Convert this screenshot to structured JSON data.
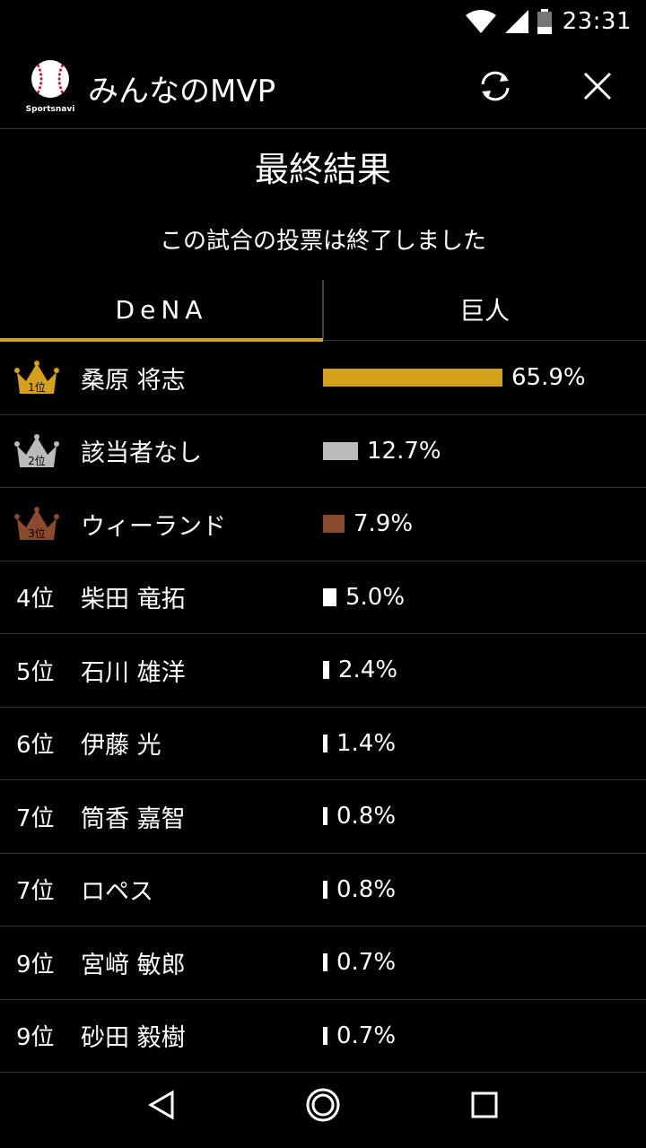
{
  "status": {
    "time": "23:31"
  },
  "app": {
    "title": "みんなのMVP",
    "logo_text": "Sportsnavi"
  },
  "heading": "最終結果",
  "subheading": "この試合の投票は終了しました",
  "tabs": [
    {
      "label": "DeNA",
      "active": true
    },
    {
      "label": "巨人",
      "active": false
    }
  ],
  "colors": {
    "gold": "#d4a21a",
    "silver": "#bbbbbb",
    "bronze": "#8b4a2b",
    "white": "#ffffff"
  },
  "rankings": [
    {
      "rank": "1位",
      "crown": "gold",
      "name": "桑原 将志",
      "percent": 65.9,
      "pct_label": "65.9%"
    },
    {
      "rank": "2位",
      "crown": "silver",
      "name": "該当者なし",
      "percent": 12.7,
      "pct_label": "12.7%"
    },
    {
      "rank": "3位",
      "crown": "bronze",
      "name": "ウィーランド",
      "percent": 7.9,
      "pct_label": "7.9%"
    },
    {
      "rank": "4位",
      "crown": null,
      "name": "柴田 竜拓",
      "percent": 5.0,
      "pct_label": "5.0%"
    },
    {
      "rank": "5位",
      "crown": null,
      "name": "石川 雄洋",
      "percent": 2.4,
      "pct_label": "2.4%"
    },
    {
      "rank": "6位",
      "crown": null,
      "name": "伊藤 光",
      "percent": 1.4,
      "pct_label": "1.4%"
    },
    {
      "rank": "7位",
      "crown": null,
      "name": "筒香 嘉智",
      "percent": 0.8,
      "pct_label": "0.8%"
    },
    {
      "rank": "7位",
      "crown": null,
      "name": "ロペス",
      "percent": 0.8,
      "pct_label": "0.8%"
    },
    {
      "rank": "9位",
      "crown": null,
      "name": "宮﨑 敏郎",
      "percent": 0.7,
      "pct_label": "0.7%"
    },
    {
      "rank": "9位",
      "crown": null,
      "name": "砂田 毅樹",
      "percent": 0.7,
      "pct_label": "0.7%"
    }
  ]
}
